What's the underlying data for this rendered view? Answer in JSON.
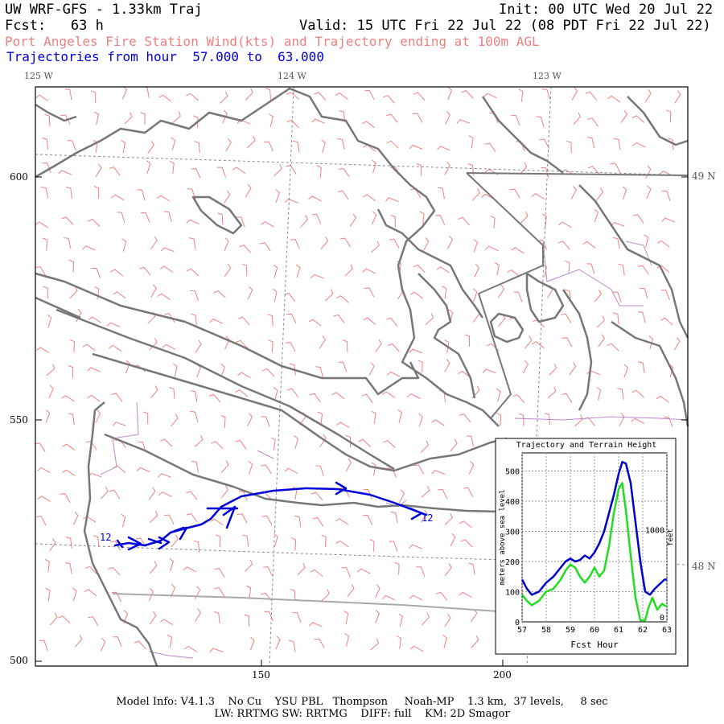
{
  "header": {
    "model_title": "UW WRF-GFS - 1.33km Traj",
    "init": "Init: 00 UTC Wed 20 Jul 22",
    "fcst": "Fcst:   63 h",
    "valid": "Valid: 15 UTC Fri 22 Jul 22 (08 PDT Fri 22 Jul 22)",
    "subtitle": "Port Angeles Fire Station Wind(kts) and Trajectory ending at 100m AGL",
    "traj_range": "Trajectories from hour  57.000 to  63.000"
  },
  "map": {
    "lon_labels": [
      "125 W",
      "124 W",
      "123 W"
    ],
    "lat_labels": [
      "49 N",
      "48 N"
    ],
    "y_ticks": [
      "600",
      "550",
      "500"
    ],
    "x_ticks": [
      "150",
      "200"
    ],
    "trajectory_labels": [
      "12",
      "12"
    ],
    "colors": {
      "coast": "#777777",
      "wind_barbs": "#f08080",
      "trajectory": "#0000dd",
      "county": "#bb88cc",
      "grid": "#888888"
    }
  },
  "inset": {
    "title": "Trajectory and Terrain Height",
    "ylabel_left": "meters above sea level",
    "ylabel_right": "feet",
    "xlabel": "Fcst Hour",
    "chart_data": {
      "type": "line",
      "x_ticks": [
        "57",
        "58",
        "59",
        "60",
        "61",
        "62",
        "63"
      ],
      "y_ticks": [
        "0",
        "100",
        "200",
        "300",
        "400",
        "500"
      ],
      "right_ticks": [
        "0",
        "1000"
      ],
      "xlim": [
        57,
        63
      ],
      "ylim": [
        0,
        560
      ],
      "series": [
        {
          "color": "#0000cc",
          "x": [
            57.0,
            57.2,
            57.4,
            57.7,
            58.0,
            58.3,
            58.6,
            58.8,
            59.0,
            59.2,
            59.4,
            59.6,
            59.8,
            60.0,
            60.2,
            60.4,
            60.6,
            60.8,
            61.0,
            61.15,
            61.3,
            61.5,
            61.7,
            61.9,
            62.1,
            62.3,
            62.5,
            62.7,
            62.9,
            63.0
          ],
          "y": [
            140,
            110,
            90,
            100,
            130,
            150,
            180,
            200,
            210,
            200,
            205,
            220,
            210,
            230,
            260,
            300,
            360,
            420,
            490,
            530,
            525,
            460,
            330,
            200,
            100,
            90,
            110,
            125,
            140,
            140
          ]
        },
        {
          "color": "#22dd22",
          "x": [
            57.0,
            57.2,
            57.4,
            57.7,
            58.0,
            58.3,
            58.6,
            58.8,
            59.0,
            59.2,
            59.4,
            59.6,
            59.8,
            60.0,
            60.2,
            60.4,
            60.6,
            60.8,
            61.0,
            61.15,
            61.3,
            61.5,
            61.7,
            61.9,
            62.1,
            62.25,
            62.4,
            62.6,
            62.8,
            63.0
          ],
          "y": [
            90,
            70,
            55,
            70,
            100,
            110,
            140,
            170,
            190,
            180,
            150,
            130,
            150,
            180,
            150,
            170,
            250,
            360,
            440,
            460,
            370,
            220,
            80,
            5,
            5,
            50,
            80,
            40,
            60,
            50
          ]
        }
      ]
    }
  },
  "footer": {
    "line1": "Model Info: V4.1.3    No Cu    YSU PBL   Thompson     Noah-MP    1.3 km,  37 levels,     8 sec",
    "line2": "LW: RRTMG SW: RRTMG    DIFF: full    KM: 2D Smagor"
  }
}
